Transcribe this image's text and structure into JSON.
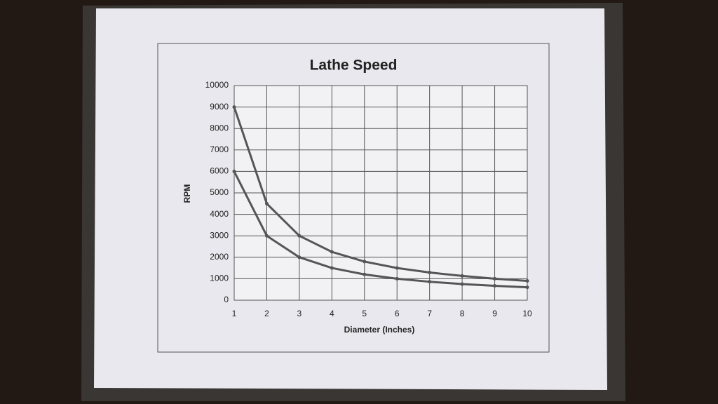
{
  "chart_data": {
    "type": "line",
    "title": "Lathe Speed",
    "x_label": "Diameter (Inches)",
    "y_label": "RPM",
    "x": [
      1,
      2,
      3,
      4,
      5,
      6,
      7,
      8,
      9,
      10
    ],
    "series": [
      {
        "color": "#555555",
        "values": [
          9000,
          4500,
          3000,
          2250,
          1800,
          1500,
          1290,
          1130,
          1000,
          900
        ]
      },
      {
        "color": "#555555",
        "values": [
          6000,
          3000,
          2000,
          1500,
          1200,
          1000,
          860,
          750,
          670,
          600
        ]
      }
    ],
    "xlim": [
      1,
      10
    ],
    "xticks": [
      1,
      2,
      3,
      4,
      5,
      6,
      7,
      8,
      9,
      10
    ],
    "ylim": [
      0,
      10000
    ],
    "yticks": [
      0,
      1000,
      2000,
      3000,
      4000,
      5000,
      6000,
      7000,
      8000,
      9000,
      10000
    ],
    "grid": true,
    "markers": true
  }
}
